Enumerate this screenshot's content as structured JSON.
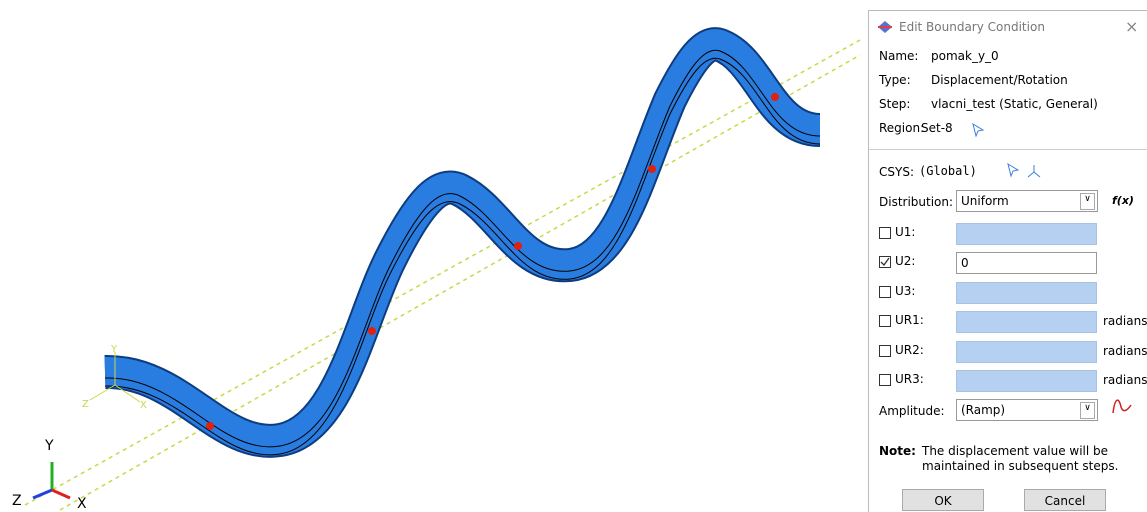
{
  "viewport": {
    "triad": {
      "y": "Y",
      "z": "Z",
      "x": "X"
    },
    "local_triad": {
      "y": "Y",
      "z": "Z",
      "x": "X"
    }
  },
  "dialog": {
    "title": "Edit Boundary Condition",
    "fields": [
      {
        "label": "Name:",
        "value": "pomak_y_0"
      },
      {
        "label": "Type:",
        "value": "Displacement/Rotation"
      },
      {
        "label": "Step:",
        "value": "vlacni_test (Static, General)"
      },
      {
        "label": "Region:",
        "value": "Set-8"
      }
    ],
    "csys": {
      "label": "CSYS:",
      "value": "(Global)"
    },
    "distribution": {
      "label": "Distribution:",
      "value": "Uniform",
      "fx": "f(x)"
    },
    "dofs": [
      {
        "label": "U1:",
        "checked": false
      },
      {
        "label": "U2:",
        "checked": true,
        "value": "0"
      },
      {
        "label": "U3:",
        "checked": false
      },
      {
        "label": "UR1:",
        "checked": false,
        "unit": "radians"
      },
      {
        "label": "UR2:",
        "checked": false,
        "unit": "radians"
      },
      {
        "label": "UR3:",
        "checked": false,
        "unit": "radians"
      }
    ],
    "amplitude": {
      "label": "Amplitude:",
      "value": "(Ramp)"
    },
    "note": {
      "label": "Note:",
      "lines": [
        "The displacement value will be",
        "maintained in subsequent steps."
      ]
    },
    "buttons": [
      "OK",
      "Cancel"
    ]
  }
}
